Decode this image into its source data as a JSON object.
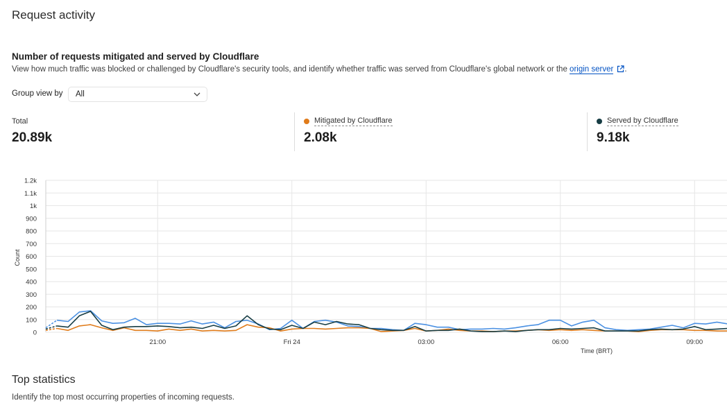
{
  "page": {
    "title": "Request activity"
  },
  "section": {
    "title": "Number of requests mitigated and served by Cloudflare",
    "description": "View how much traffic was blocked or challenged by Cloudflare's security tools, and identify whether traffic was served from Cloudflare's global network or the ",
    "link_text": "origin server",
    "period": "."
  },
  "group_view": {
    "label": "Group view by",
    "selected": "All"
  },
  "stats": {
    "total": {
      "label": "Total",
      "value": "20.89k",
      "color": "#4a90e2"
    },
    "mitigated": {
      "label": "Mitigated by Cloudflare",
      "value": "2.08k",
      "color": "#e07b1a"
    },
    "served": {
      "label": "Served by Cloudflare",
      "value": "9.18k",
      "color": "#173d44"
    }
  },
  "chart_data": {
    "type": "line",
    "ylabel": "Count",
    "xlabel": "Time (BRT)",
    "ylim": [
      0,
      1200
    ],
    "y_ticks": [
      "0",
      "100",
      "200",
      "300",
      "400",
      "500",
      "600",
      "700",
      "800",
      "900",
      "1k",
      "1.1k",
      "1.2k"
    ],
    "y_tick_values": [
      0,
      100,
      200,
      300,
      400,
      500,
      600,
      700,
      800,
      900,
      1000,
      1100,
      1200
    ],
    "x_ticks": [
      "21:00",
      "Fri 24",
      "03:00",
      "06:00",
      "09:00"
    ],
    "x_tick_index": [
      10,
      22,
      34,
      46,
      58
    ],
    "grid": true,
    "series": [
      {
        "name": "Total",
        "color": "#4a90e2",
        "values": [
          35,
          95,
          85,
          160,
          170,
          90,
          70,
          75,
          110,
          60,
          70,
          70,
          65,
          90,
          65,
          80,
          35,
          85,
          95,
          65,
          20,
          30,
          95,
          30,
          85,
          95,
          80,
          50,
          45,
          30,
          30,
          20,
          15,
          70,
          60,
          40,
          40,
          20,
          25,
          25,
          30,
          25,
          35,
          50,
          60,
          95,
          95,
          50,
          80,
          95,
          35,
          20,
          15,
          20,
          25,
          40,
          55,
          35,
          70,
          65,
          80,
          65
        ]
      },
      {
        "name": "Mitigated by Cloudflare",
        "color": "#e07b1a",
        "values": [
          15,
          30,
          15,
          50,
          60,
          35,
          15,
          35,
          15,
          15,
          10,
          25,
          15,
          25,
          10,
          15,
          10,
          15,
          60,
          40,
          35,
          10,
          25,
          30,
          30,
          25,
          30,
          35,
          35,
          30,
          5,
          10,
          15,
          30,
          10,
          15,
          25,
          15,
          10,
          10,
          5,
          10,
          10,
          15,
          20,
          15,
          20,
          15,
          20,
          15,
          10,
          10,
          10,
          5,
          15,
          20,
          20,
          20,
          15,
          15,
          10,
          10
        ]
      },
      {
        "name": "Served by Cloudflare",
        "color": "#173d44",
        "values": [
          25,
          50,
          40,
          130,
          165,
          55,
          20,
          40,
          45,
          45,
          50,
          45,
          35,
          40,
          30,
          55,
          30,
          50,
          130,
          60,
          25,
          20,
          55,
          30,
          80,
          60,
          85,
          65,
          60,
          30,
          20,
          15,
          15,
          45,
          10,
          15,
          15,
          25,
          10,
          5,
          5,
          10,
          5,
          15,
          20,
          20,
          30,
          25,
          30,
          35,
          10,
          10,
          10,
          10,
          20,
          25,
          20,
          25,
          45,
          20,
          25,
          30
        ]
      }
    ]
  },
  "top": {
    "title": "Top statistics",
    "description": "Identify the top most occurring properties of incoming requests."
  }
}
